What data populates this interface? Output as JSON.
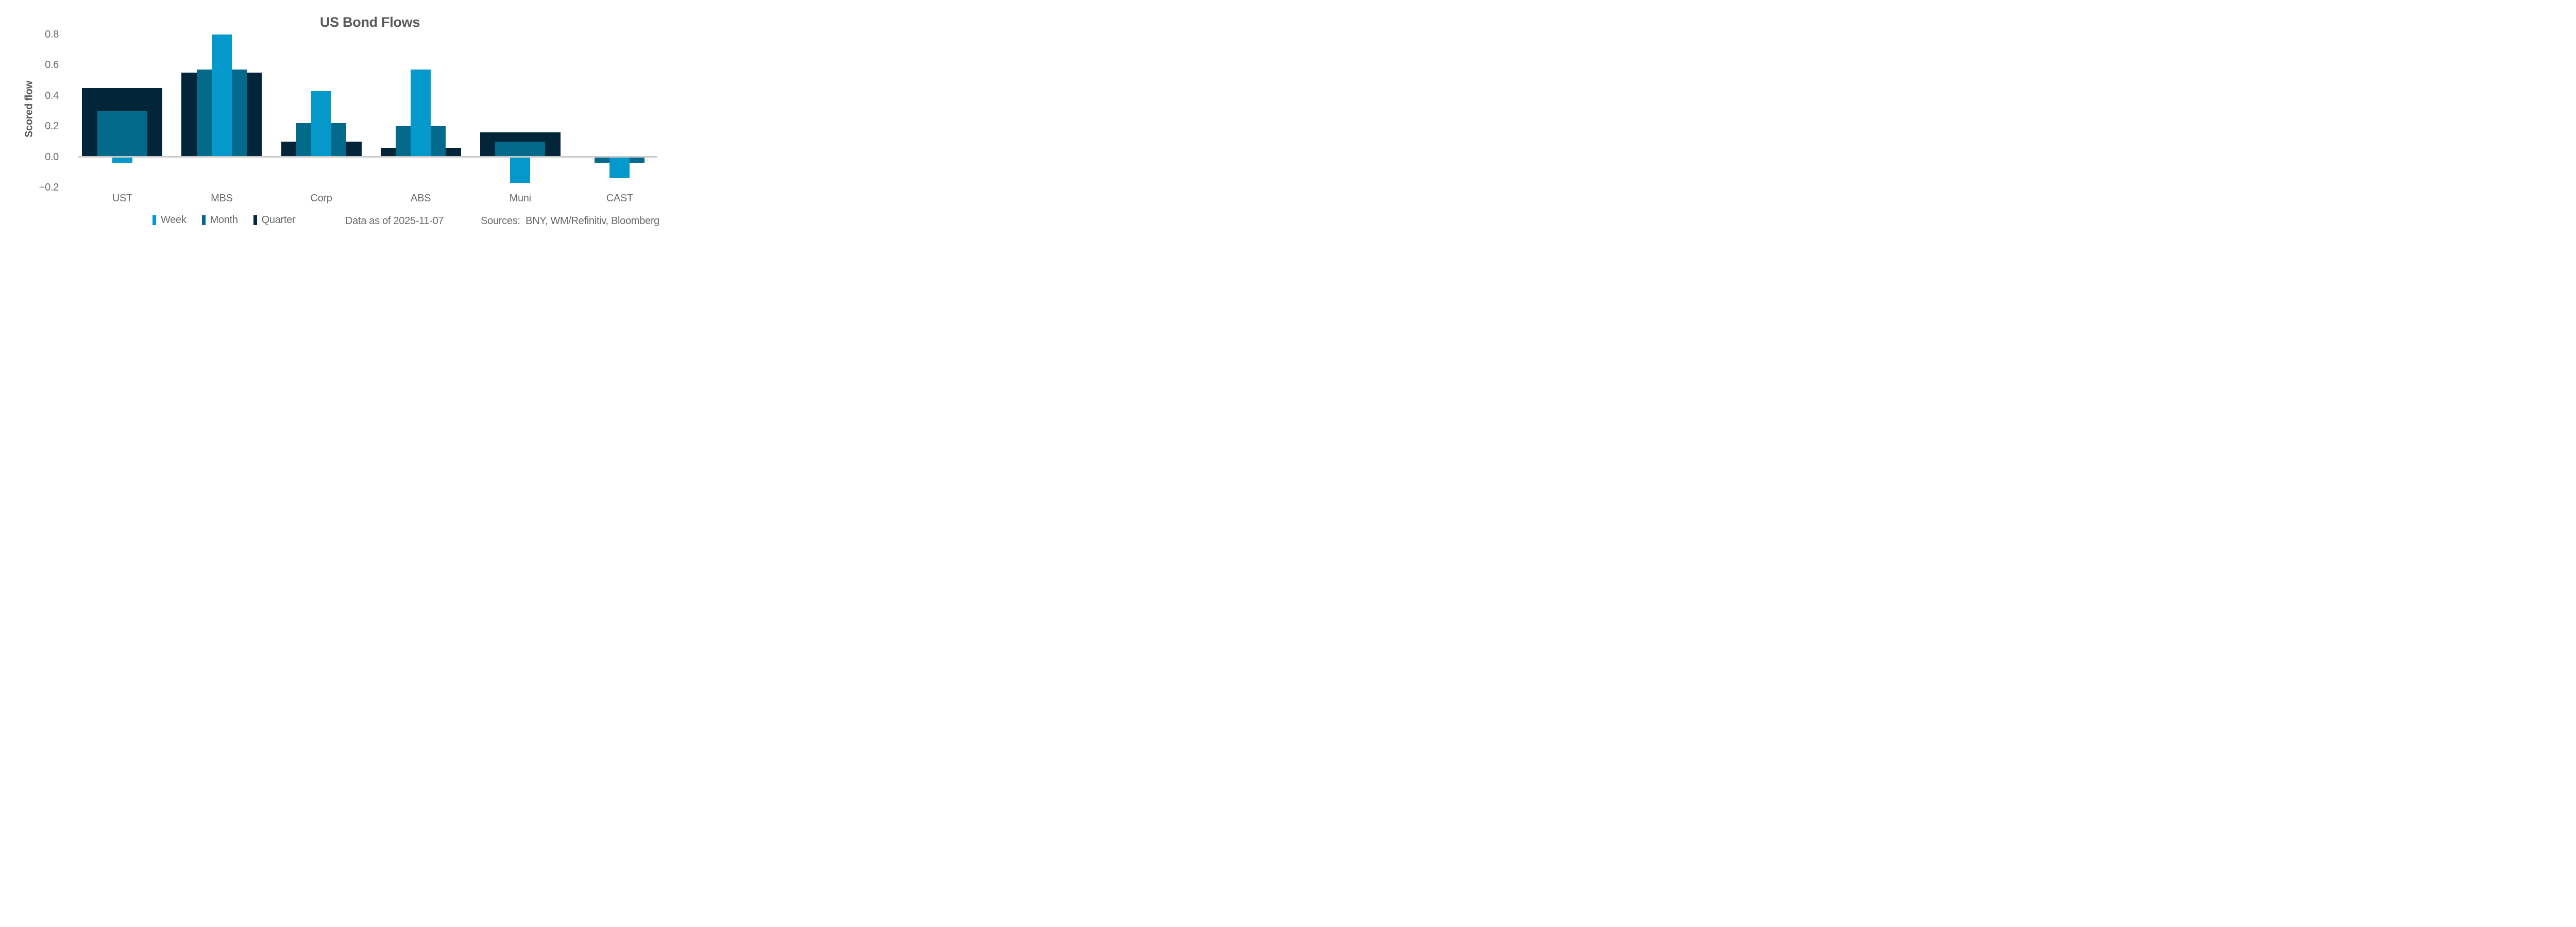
{
  "chart_data": {
    "type": "bar",
    "title": "US Bond Flows",
    "ylabel": "Scored flow",
    "xlabel": "",
    "categories": [
      "UST",
      "MBS",
      "Corp",
      "ABS",
      "Muni",
      "CAST"
    ],
    "series": [
      {
        "name": "Week",
        "color": "#0599cb",
        "values": [
          -0.04,
          0.8,
          0.43,
          0.57,
          -0.17,
          -0.14
        ]
      },
      {
        "name": "Month",
        "color": "#046a8c",
        "values": [
          0.3,
          0.57,
          0.22,
          0.2,
          0.1,
          -0.04
        ]
      },
      {
        "name": "Quarter",
        "color": "#032539",
        "values": [
          0.45,
          0.55,
          0.1,
          0.06,
          0.16,
          0.0
        ]
      }
    ],
    "yticks": [
      {
        "label": "0.8",
        "value": 0.8
      },
      {
        "label": "0.6",
        "value": 0.6
      },
      {
        "label": "0.4",
        "value": 0.4
      },
      {
        "label": "0.2",
        "value": 0.2
      },
      {
        "label": "0.0",
        "value": 0.0
      },
      {
        "label": "−0.2",
        "value": -0.2
      }
    ],
    "ylim": [
      -0.27,
      0.88
    ],
    "grid": false,
    "legend_position": "bottom",
    "bar_style": "overlapping: Quarter widest behind, Month medium, Week narrowest in front",
    "colors": {
      "zero_line": "#cbcbcb",
      "title_text": "#58595b",
      "axis_text": "#6a6b6e",
      "background": "#ffffff"
    },
    "footnotes": {
      "data_as_of": "Data as of 2025-11-07",
      "sources": "Sources:  BNY, WM/Refinitiv, Bloomberg"
    }
  }
}
